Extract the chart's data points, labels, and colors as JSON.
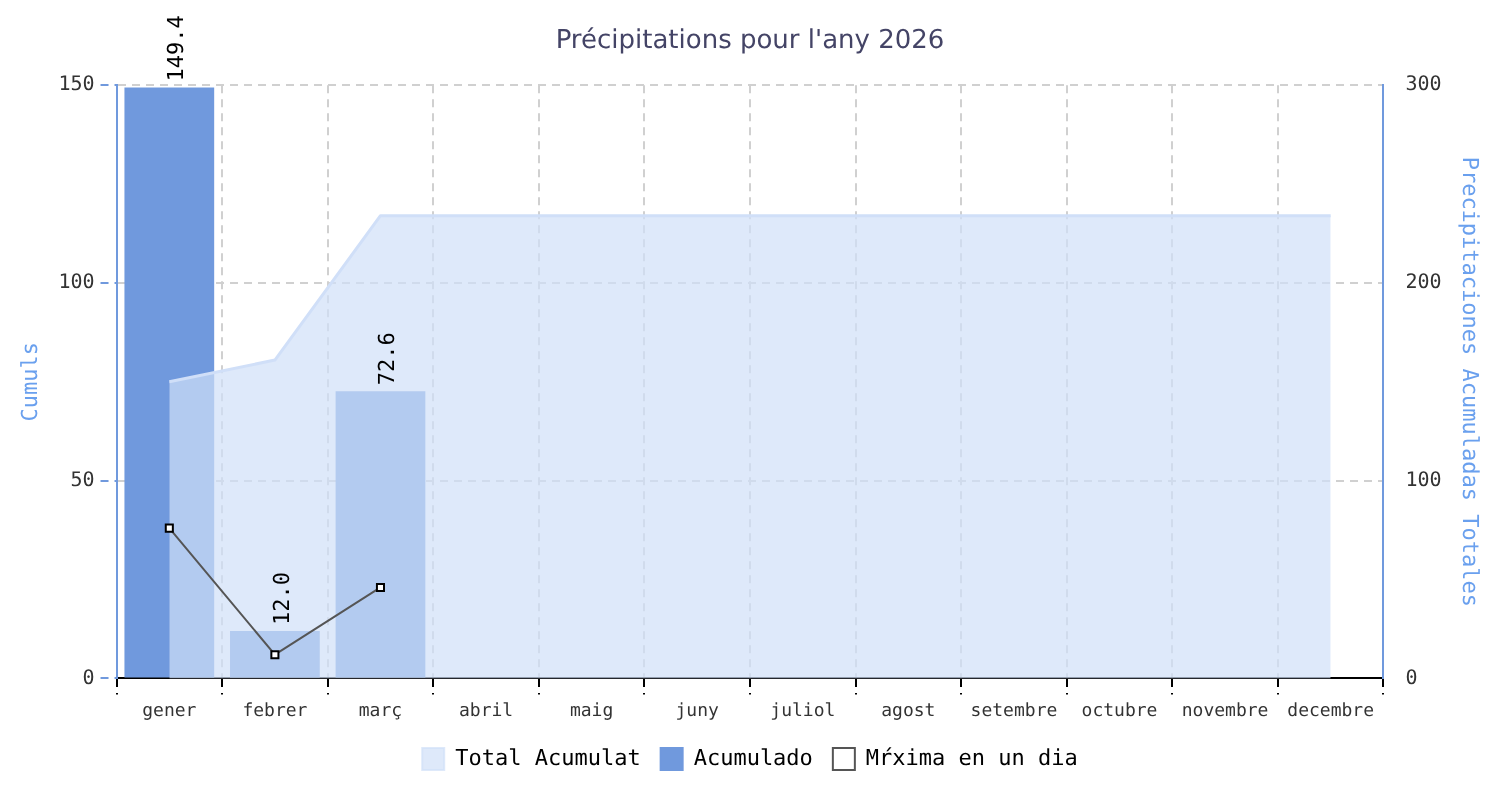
{
  "chart_data": {
    "type": "bar",
    "title": "Précipitations pour l'any 2026",
    "ylabel": "Cumuls",
    "y2label": "Precipitaciones Acumuladas Totales",
    "categories": [
      "gener",
      "febrer",
      "març",
      "abril",
      "maig",
      "juny",
      "juliol",
      "agost",
      "setembre",
      "octubre",
      "novembre",
      "decembre"
    ],
    "series": [
      {
        "name": "Total Acumulat",
        "type": "area",
        "axis": "y2",
        "color": "#d0dff8",
        "values": [
          150,
          161,
          234,
          234,
          234,
          234,
          234,
          234,
          234,
          234,
          234,
          234
        ]
      },
      {
        "name": "Acumulado",
        "color": "#7099dd",
        "values": [
          149.4,
          12.0,
          72.6,
          null,
          null,
          null,
          null,
          null,
          null,
          null,
          null,
          null
        ],
        "value_labels": [
          "149.4",
          "12.0",
          "72.6",
          null,
          null,
          null,
          null,
          null,
          null,
          null,
          null,
          null
        ]
      },
      {
        "name": "Mŕxima en un dia",
        "type": "line",
        "color": "#555555",
        "marker": "square",
        "values": [
          38,
          6,
          23,
          null,
          null,
          null,
          null,
          null,
          null,
          null,
          null,
          null
        ]
      }
    ],
    "ylim": [
      0,
      150
    ],
    "yticks": [
      0,
      50,
      100,
      150
    ],
    "y2lim": [
      0,
      300
    ],
    "y2ticks": [
      0,
      100,
      200,
      300
    ],
    "grid": true,
    "legend": "bottom"
  }
}
